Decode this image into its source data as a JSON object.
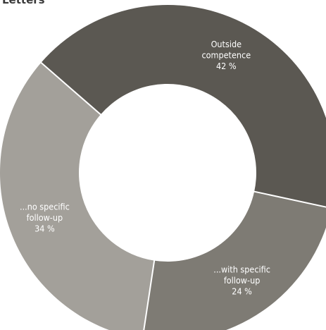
{
  "title": "Letters",
  "chart_data": {
    "type": "pie",
    "variant": "donut",
    "title": "Letters",
    "slices": [
      {
        "label_lines": [
          "Outside",
          "competence"
        ],
        "value_label": "42 %",
        "value": 42,
        "color": "#5b5852"
      },
      {
        "label_lines": [
          "...with specific",
          "follow-up"
        ],
        "value_label": "24 %",
        "value": 24,
        "color": "#7e7b74"
      },
      {
        "label_lines": [
          "...no specific",
          "follow-up"
        ],
        "value_label": "34 %",
        "value": 34,
        "color": "#a3a09a"
      }
    ],
    "separator_color": "#ffffff"
  }
}
